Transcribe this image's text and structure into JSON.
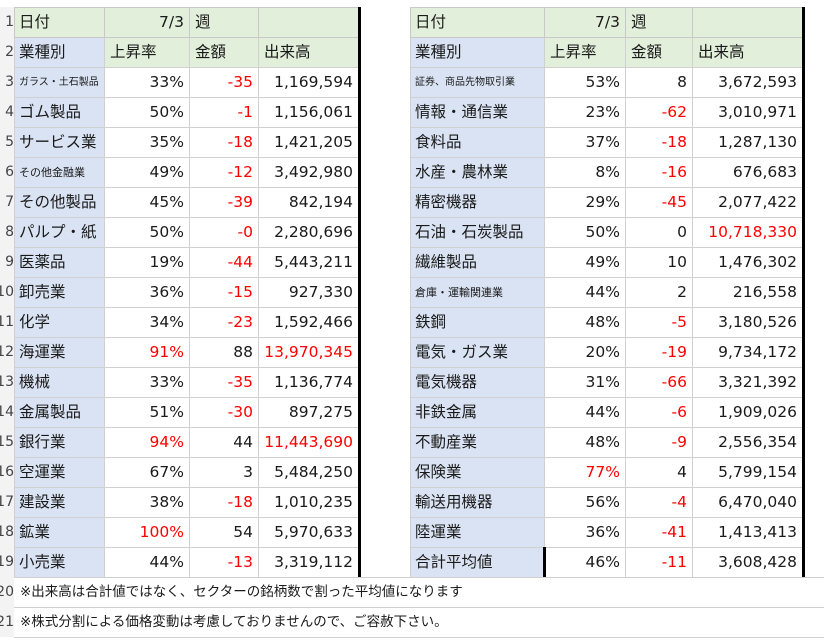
{
  "header": {
    "date_label": "日付",
    "date_value": "7/3",
    "week_label": "週"
  },
  "subheader": {
    "category": "業種別",
    "rate": "上昇率",
    "amount": "金額",
    "volume": "出来高"
  },
  "row_numbers": [
    "1",
    "2",
    "3",
    "4",
    "5",
    "6",
    "7",
    "8",
    "9",
    "10",
    "11",
    "12",
    "13",
    "14",
    "15",
    "16",
    "17",
    "18",
    "19",
    "20",
    "21"
  ],
  "left_rows": [
    {
      "name": "ガラス・土石製品",
      "rate": "33%",
      "amount": "-35",
      "volume": "1,169,594",
      "size": "small3",
      "rate_red": false,
      "amount_red": true,
      "volume_red": false
    },
    {
      "name": "ゴム製品",
      "rate": "50%",
      "amount": "-1",
      "volume": "1,156,061",
      "size": "",
      "rate_red": false,
      "amount_red": true,
      "volume_red": false
    },
    {
      "name": "サービス業",
      "rate": "35%",
      "amount": "-18",
      "volume": "1,421,205",
      "size": "",
      "rate_red": false,
      "amount_red": true,
      "volume_red": false
    },
    {
      "name": "その他金融業",
      "rate": "49%",
      "amount": "-12",
      "volume": "3,492,980",
      "size": "small",
      "rate_red": false,
      "amount_red": true,
      "volume_red": false
    },
    {
      "name": "その他製品",
      "rate": "45%",
      "amount": "-39",
      "volume": "842,194",
      "size": "",
      "rate_red": false,
      "amount_red": true,
      "volume_red": false
    },
    {
      "name": "パルプ・紙",
      "rate": "50%",
      "amount": "-0",
      "volume": "2,280,696",
      "size": "",
      "rate_red": false,
      "amount_red": true,
      "volume_red": false
    },
    {
      "name": "医薬品",
      "rate": "19%",
      "amount": "-44",
      "volume": "5,443,211",
      "size": "",
      "rate_red": false,
      "amount_red": true,
      "volume_red": false
    },
    {
      "name": "卸売業",
      "rate": "36%",
      "amount": "-15",
      "volume": "927,330",
      "size": "",
      "rate_red": false,
      "amount_red": true,
      "volume_red": false
    },
    {
      "name": "化学",
      "rate": "34%",
      "amount": "-23",
      "volume": "1,592,466",
      "size": "",
      "rate_red": false,
      "amount_red": true,
      "volume_red": false
    },
    {
      "name": "海運業",
      "rate": "91%",
      "amount": "88",
      "volume": "13,970,345",
      "size": "",
      "rate_red": true,
      "amount_red": false,
      "volume_red": true
    },
    {
      "name": "機械",
      "rate": "33%",
      "amount": "-35",
      "volume": "1,136,774",
      "size": "",
      "rate_red": false,
      "amount_red": true,
      "volume_red": false
    },
    {
      "name": "金属製品",
      "rate": "51%",
      "amount": "-30",
      "volume": "897,275",
      "size": "",
      "rate_red": false,
      "amount_red": true,
      "volume_red": false
    },
    {
      "name": "銀行業",
      "rate": "94%",
      "amount": "44",
      "volume": "11,443,690",
      "size": "",
      "rate_red": true,
      "amount_red": false,
      "volume_red": true
    },
    {
      "name": "空運業",
      "rate": "67%",
      "amount": "3",
      "volume": "5,484,250",
      "size": "",
      "rate_red": false,
      "amount_red": false,
      "volume_red": false
    },
    {
      "name": "建設業",
      "rate": "38%",
      "amount": "-18",
      "volume": "1,010,235",
      "size": "",
      "rate_red": false,
      "amount_red": true,
      "volume_red": false
    },
    {
      "name": "鉱業",
      "rate": "100%",
      "amount": "54",
      "volume": "5,970,633",
      "size": "",
      "rate_red": true,
      "amount_red": false,
      "volume_red": false
    },
    {
      "name": "小売業",
      "rate": "44%",
      "amount": "-13",
      "volume": "3,319,112",
      "size": "",
      "rate_red": false,
      "amount_red": true,
      "volume_red": false
    }
  ],
  "right_rows": [
    {
      "name": "証券、商品先物取引業",
      "rate": "53%",
      "amount": "8",
      "volume": "3,672,593",
      "size": "small3",
      "rate_red": false,
      "amount_red": false,
      "volume_red": false
    },
    {
      "name": "情報・通信業",
      "rate": "23%",
      "amount": "-62",
      "volume": "3,010,971",
      "size": "",
      "rate_red": false,
      "amount_red": true,
      "volume_red": false
    },
    {
      "name": "食料品",
      "rate": "37%",
      "amount": "-18",
      "volume": "1,287,130",
      "size": "",
      "rate_red": false,
      "amount_red": true,
      "volume_red": false
    },
    {
      "name": "水産・農林業",
      "rate": "8%",
      "amount": "-16",
      "volume": "676,683",
      "size": "",
      "rate_red": false,
      "amount_red": true,
      "volume_red": false
    },
    {
      "name": "精密機器",
      "rate": "29%",
      "amount": "-45",
      "volume": "2,077,422",
      "size": "",
      "rate_red": false,
      "amount_red": true,
      "volume_red": false
    },
    {
      "name": "石油・石炭製品",
      "rate": "50%",
      "amount": "0",
      "volume": "10,718,330",
      "size": "",
      "rate_red": false,
      "amount_red": false,
      "volume_red": true
    },
    {
      "name": "繊維製品",
      "rate": "49%",
      "amount": "10",
      "volume": "1,476,302",
      "size": "",
      "rate_red": false,
      "amount_red": false,
      "volume_red": false
    },
    {
      "name": "倉庫・運輸関連業",
      "rate": "44%",
      "amount": "2",
      "volume": "216,558",
      "size": "small",
      "rate_red": false,
      "amount_red": false,
      "volume_red": false
    },
    {
      "name": "鉄鋼",
      "rate": "48%",
      "amount": "-5",
      "volume": "3,180,526",
      "size": "",
      "rate_red": false,
      "amount_red": true,
      "volume_red": false
    },
    {
      "name": "電気・ガス業",
      "rate": "20%",
      "amount": "-19",
      "volume": "9,734,172",
      "size": "",
      "rate_red": false,
      "amount_red": true,
      "volume_red": false
    },
    {
      "name": "電気機器",
      "rate": "31%",
      "amount": "-66",
      "volume": "3,321,392",
      "size": "",
      "rate_red": false,
      "amount_red": true,
      "volume_red": false
    },
    {
      "name": "非鉄金属",
      "rate": "44%",
      "amount": "-6",
      "volume": "1,909,026",
      "size": "",
      "rate_red": false,
      "amount_red": true,
      "volume_red": false
    },
    {
      "name": "不動産業",
      "rate": "48%",
      "amount": "-9",
      "volume": "2,556,354",
      "size": "",
      "rate_red": false,
      "amount_red": true,
      "volume_red": false
    },
    {
      "name": "保険業",
      "rate": "77%",
      "amount": "4",
      "volume": "5,799,154",
      "size": "",
      "rate_red": true,
      "amount_red": false,
      "volume_red": false
    },
    {
      "name": "輸送用機器",
      "rate": "56%",
      "amount": "-4",
      "volume": "6,470,040",
      "size": "",
      "rate_red": false,
      "amount_red": true,
      "volume_red": false
    },
    {
      "name": "陸運業",
      "rate": "36%",
      "amount": "-41",
      "volume": "1,413,413",
      "size": "",
      "rate_red": false,
      "amount_red": true,
      "volume_red": false
    },
    {
      "name": "合計平均値",
      "rate": "46%",
      "amount": "-11",
      "volume": "3,608,428",
      "size": "",
      "rate_red": false,
      "amount_red": true,
      "volume_red": false
    }
  ],
  "notes": [
    "※出来高は合計値ではなく、セクターの銘柄数で割った平均値になります",
    "※株式分割による価格変動は考慮しておりませんので、ご容赦下さい。"
  ],
  "colors": {
    "category_bg": "#dae3f3",
    "header_bg": "#e2efda",
    "negative": "#ff0000"
  }
}
